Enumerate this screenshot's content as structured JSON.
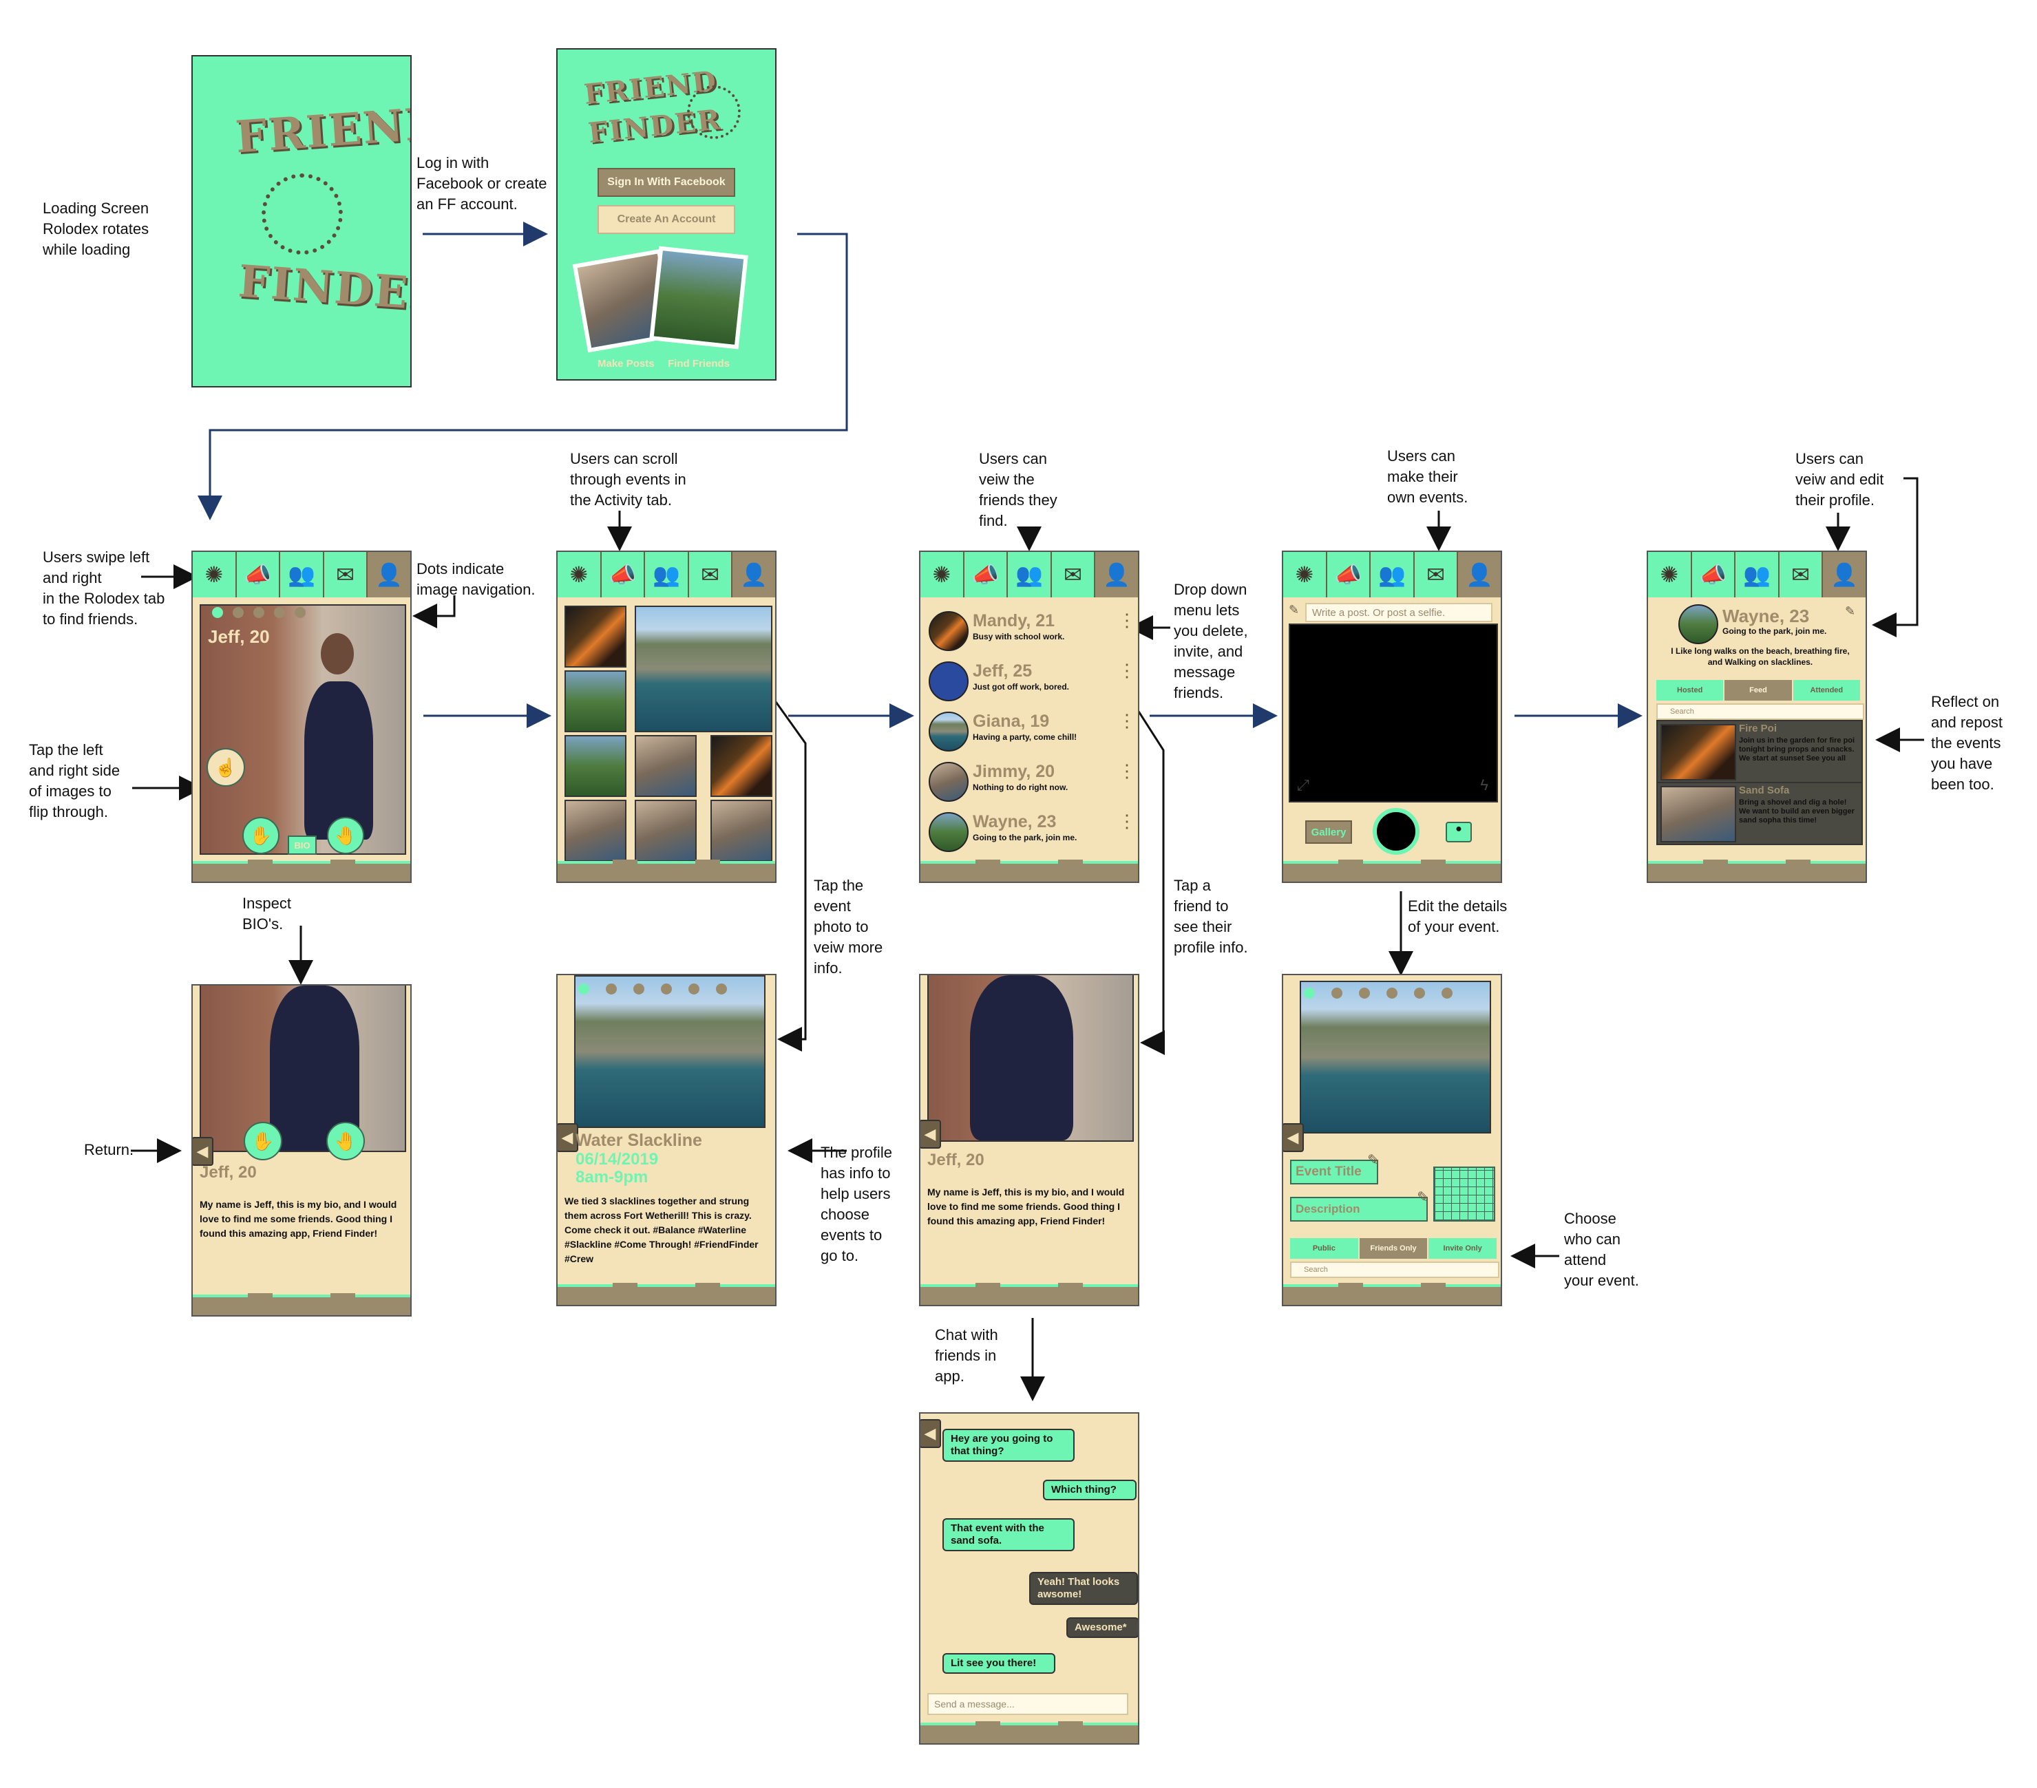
{
  "annotations": {
    "loading": "Loading Screen\nRolodex rotates\nwhile loading",
    "login": "Log in with\nFacebook or create\nan FF account.",
    "swipe": "Users swipe left\nand right\nin the Rolodex tab\nto find friends.",
    "dots": "Dots indicate\nimage navigation.",
    "tap_sides": "Tap the left\nand right side\nof images to\nflip through.",
    "inspect_bio": "Inspect\nBIO's.",
    "return": "Return.",
    "scroll_events": "Users can scroll\nthrough events in\nthe Activity tab.",
    "tap_photo": "Tap the\nevent\nphoto to\nveiw more\ninfo.",
    "profile_info": "The profile\nhas info to\nhelp users\nchoose\nevents to\ngo to.",
    "view_friends": "Users can\nveiw the\nfriends they\nfind.",
    "dropdown": "Drop down\nmenu lets\nyou delete,\ninvite, and\nmessage\nfriends.",
    "tap_friend": "Tap a\nfriend to\nsee their\nprofile info.",
    "chat": "Chat with\nfriends in\napp.",
    "make_events": "Users can\nmake their\nown events.",
    "edit_details": "Edit the details\nof your event.",
    "choose_attend": "Choose\nwho can\nattend\nyour event.",
    "view_profile": "Users can\nveiw and edit\ntheir profile.",
    "reflect": "Reflect on\nand repost\nthe events\nyou have\nbeen too."
  },
  "loading_screen": {
    "logo_top": "FRIEND",
    "logo_bottom": "FINDER"
  },
  "login_screen": {
    "logo_top": "FRIEND",
    "logo_bottom": "FINDER",
    "facebook_button": "Sign In With Facebook",
    "create_button": "Create An Account",
    "caption_left": "Make Posts",
    "caption_right": "Find Friends"
  },
  "rolodex_screen": {
    "name": "Jeff, 20",
    "bio_tab": "BIO"
  },
  "bio_screen": {
    "name": "Jeff, 20",
    "bio": "My name is Jeff,  this is my bio, and I would love to find me some friends. Good thing I found this amazing app, Friend Finder!"
  },
  "event_detail": {
    "title": "Water Slackline",
    "date": "06/14/2019",
    "time": "8am-9pm",
    "description": "We tied 3 slacklines together and strung them across Fort Wetherill! This is crazy. Come check it out. #Balance #Waterline #Slackline #Come Through! #FriendFinder #Crew"
  },
  "friends_list": [
    {
      "name": "Mandy, 21",
      "status": "Busy with school work."
    },
    {
      "name": "Jeff, 25",
      "status": "Just got off work, bored."
    },
    {
      "name": "Giana, 19",
      "status": "Having a party, come chill!"
    },
    {
      "name": "Jimmy, 20",
      "status": "Nothing to do right now."
    },
    {
      "name": "Wayne, 23",
      "status": "Going to the park, join me."
    }
  ],
  "friend_profile": {
    "name": "Jeff, 20",
    "bio": "My name is Jeff,  this is my bio, and I would love to find me some friends. Good thing I found this amazing app, Friend Finder!"
  },
  "chat": {
    "messages": [
      {
        "text": "Hey are you going to that thing?",
        "side": "left",
        "style": "green"
      },
      {
        "text": "Which thing?",
        "side": "right",
        "style": "green"
      },
      {
        "text": "That event with the sand sofa.",
        "side": "left",
        "style": "green"
      },
      {
        "text": "Yeah! That looks awsome!",
        "side": "right",
        "style": "dark"
      },
      {
        "text": "Awesome*",
        "side": "right",
        "style": "dark"
      },
      {
        "text": "Lit see you there!",
        "side": "left",
        "style": "green"
      }
    ],
    "input_placeholder": "Send a message..."
  },
  "camera_screen": {
    "post_placeholder": "Write a post. Or post a selfie.",
    "gallery": "Gallery"
  },
  "create_event": {
    "title_field": "Event Title",
    "description_field": "Description",
    "visibility": [
      "Public",
      "Friends Only",
      "Invite Only"
    ],
    "search": "Search"
  },
  "profile_screen": {
    "name": "Wayne, 23",
    "status": "Going to the park, join me.",
    "about": "I Like long walks on the beach, breathing fire, and Walking on slacklines.",
    "tabs": [
      "Hosted",
      "Feed",
      "Attended"
    ],
    "search": "Search",
    "events": [
      {
        "title": "Fire Poi",
        "text": "Join us in the garden for fire poi tonight bring props and snacks. We start at sunset See you all"
      },
      {
        "title": "Sand Sofa",
        "text": "Bring a shovel and dig a hole! We want to build an even bigger sand sopha this time!"
      }
    ]
  },
  "colors": {
    "mint": "#6ff5b3",
    "tan": "#f4e2b8",
    "taupe": "#9b8b6d",
    "arrow_blue": "#1f3a6b"
  },
  "icons": [
    "rolodex-icon",
    "megaphone-icon",
    "people-icon",
    "note-icon",
    "person-icon",
    "hand-left-icon",
    "hand-right-icon",
    "back-icon",
    "kebab-icon",
    "pencil-icon",
    "camera-icon",
    "flash-icon"
  ]
}
